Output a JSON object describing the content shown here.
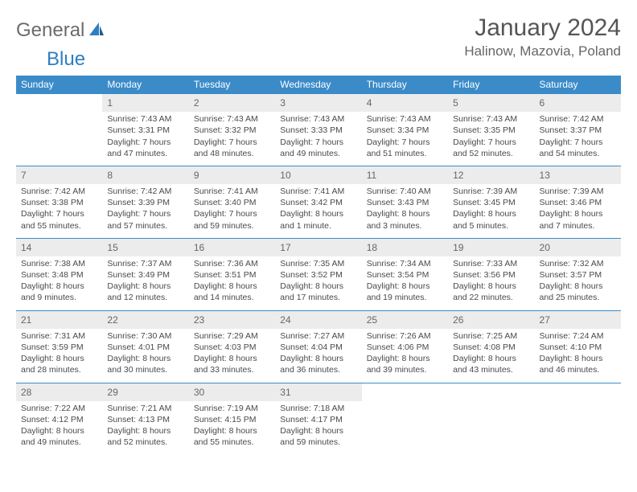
{
  "logo": {
    "part1": "General",
    "part2": "Blue"
  },
  "title": "January 2024",
  "location": "Halinow, Mazovia, Poland",
  "weekdays": [
    "Sunday",
    "Monday",
    "Tuesday",
    "Wednesday",
    "Thursday",
    "Friday",
    "Saturday"
  ],
  "header_bg": "#3b8bc9",
  "daynum_bg": "#ececec",
  "weeks": [
    {
      "days": [
        {
          "n": "",
          "lines": []
        },
        {
          "n": "1",
          "lines": [
            "Sunrise: 7:43 AM",
            "Sunset: 3:31 PM",
            "Daylight: 7 hours",
            "and 47 minutes."
          ]
        },
        {
          "n": "2",
          "lines": [
            "Sunrise: 7:43 AM",
            "Sunset: 3:32 PM",
            "Daylight: 7 hours",
            "and 48 minutes."
          ]
        },
        {
          "n": "3",
          "lines": [
            "Sunrise: 7:43 AM",
            "Sunset: 3:33 PM",
            "Daylight: 7 hours",
            "and 49 minutes."
          ]
        },
        {
          "n": "4",
          "lines": [
            "Sunrise: 7:43 AM",
            "Sunset: 3:34 PM",
            "Daylight: 7 hours",
            "and 51 minutes."
          ]
        },
        {
          "n": "5",
          "lines": [
            "Sunrise: 7:43 AM",
            "Sunset: 3:35 PM",
            "Daylight: 7 hours",
            "and 52 minutes."
          ]
        },
        {
          "n": "6",
          "lines": [
            "Sunrise: 7:42 AM",
            "Sunset: 3:37 PM",
            "Daylight: 7 hours",
            "and 54 minutes."
          ]
        }
      ]
    },
    {
      "days": [
        {
          "n": "7",
          "lines": [
            "Sunrise: 7:42 AM",
            "Sunset: 3:38 PM",
            "Daylight: 7 hours",
            "and 55 minutes."
          ]
        },
        {
          "n": "8",
          "lines": [
            "Sunrise: 7:42 AM",
            "Sunset: 3:39 PM",
            "Daylight: 7 hours",
            "and 57 minutes."
          ]
        },
        {
          "n": "9",
          "lines": [
            "Sunrise: 7:41 AM",
            "Sunset: 3:40 PM",
            "Daylight: 7 hours",
            "and 59 minutes."
          ]
        },
        {
          "n": "10",
          "lines": [
            "Sunrise: 7:41 AM",
            "Sunset: 3:42 PM",
            "Daylight: 8 hours",
            "and 1 minute."
          ]
        },
        {
          "n": "11",
          "lines": [
            "Sunrise: 7:40 AM",
            "Sunset: 3:43 PM",
            "Daylight: 8 hours",
            "and 3 minutes."
          ]
        },
        {
          "n": "12",
          "lines": [
            "Sunrise: 7:39 AM",
            "Sunset: 3:45 PM",
            "Daylight: 8 hours",
            "and 5 minutes."
          ]
        },
        {
          "n": "13",
          "lines": [
            "Sunrise: 7:39 AM",
            "Sunset: 3:46 PM",
            "Daylight: 8 hours",
            "and 7 minutes."
          ]
        }
      ]
    },
    {
      "days": [
        {
          "n": "14",
          "lines": [
            "Sunrise: 7:38 AM",
            "Sunset: 3:48 PM",
            "Daylight: 8 hours",
            "and 9 minutes."
          ]
        },
        {
          "n": "15",
          "lines": [
            "Sunrise: 7:37 AM",
            "Sunset: 3:49 PM",
            "Daylight: 8 hours",
            "and 12 minutes."
          ]
        },
        {
          "n": "16",
          "lines": [
            "Sunrise: 7:36 AM",
            "Sunset: 3:51 PM",
            "Daylight: 8 hours",
            "and 14 minutes."
          ]
        },
        {
          "n": "17",
          "lines": [
            "Sunrise: 7:35 AM",
            "Sunset: 3:52 PM",
            "Daylight: 8 hours",
            "and 17 minutes."
          ]
        },
        {
          "n": "18",
          "lines": [
            "Sunrise: 7:34 AM",
            "Sunset: 3:54 PM",
            "Daylight: 8 hours",
            "and 19 minutes."
          ]
        },
        {
          "n": "19",
          "lines": [
            "Sunrise: 7:33 AM",
            "Sunset: 3:56 PM",
            "Daylight: 8 hours",
            "and 22 minutes."
          ]
        },
        {
          "n": "20",
          "lines": [
            "Sunrise: 7:32 AM",
            "Sunset: 3:57 PM",
            "Daylight: 8 hours",
            "and 25 minutes."
          ]
        }
      ]
    },
    {
      "days": [
        {
          "n": "21",
          "lines": [
            "Sunrise: 7:31 AM",
            "Sunset: 3:59 PM",
            "Daylight: 8 hours",
            "and 28 minutes."
          ]
        },
        {
          "n": "22",
          "lines": [
            "Sunrise: 7:30 AM",
            "Sunset: 4:01 PM",
            "Daylight: 8 hours",
            "and 30 minutes."
          ]
        },
        {
          "n": "23",
          "lines": [
            "Sunrise: 7:29 AM",
            "Sunset: 4:03 PM",
            "Daylight: 8 hours",
            "and 33 minutes."
          ]
        },
        {
          "n": "24",
          "lines": [
            "Sunrise: 7:27 AM",
            "Sunset: 4:04 PM",
            "Daylight: 8 hours",
            "and 36 minutes."
          ]
        },
        {
          "n": "25",
          "lines": [
            "Sunrise: 7:26 AM",
            "Sunset: 4:06 PM",
            "Daylight: 8 hours",
            "and 39 minutes."
          ]
        },
        {
          "n": "26",
          "lines": [
            "Sunrise: 7:25 AM",
            "Sunset: 4:08 PM",
            "Daylight: 8 hours",
            "and 43 minutes."
          ]
        },
        {
          "n": "27",
          "lines": [
            "Sunrise: 7:24 AM",
            "Sunset: 4:10 PM",
            "Daylight: 8 hours",
            "and 46 minutes."
          ]
        }
      ]
    },
    {
      "days": [
        {
          "n": "28",
          "lines": [
            "Sunrise: 7:22 AM",
            "Sunset: 4:12 PM",
            "Daylight: 8 hours",
            "and 49 minutes."
          ]
        },
        {
          "n": "29",
          "lines": [
            "Sunrise: 7:21 AM",
            "Sunset: 4:13 PM",
            "Daylight: 8 hours",
            "and 52 minutes."
          ]
        },
        {
          "n": "30",
          "lines": [
            "Sunrise: 7:19 AM",
            "Sunset: 4:15 PM",
            "Daylight: 8 hours",
            "and 55 minutes."
          ]
        },
        {
          "n": "31",
          "lines": [
            "Sunrise: 7:18 AM",
            "Sunset: 4:17 PM",
            "Daylight: 8 hours",
            "and 59 minutes."
          ]
        },
        {
          "n": "",
          "lines": []
        },
        {
          "n": "",
          "lines": []
        },
        {
          "n": "",
          "lines": []
        }
      ]
    }
  ]
}
